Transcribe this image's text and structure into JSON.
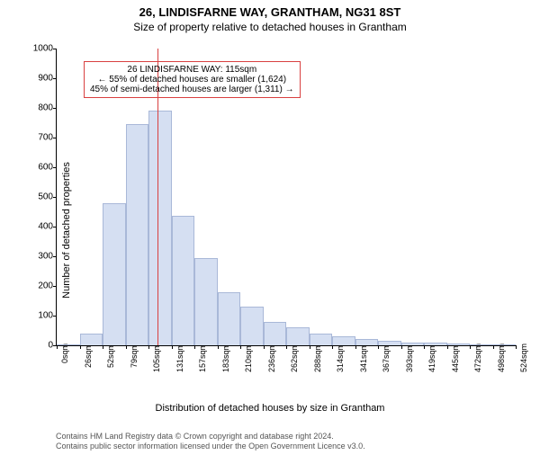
{
  "title_main": "26, LINDISFARNE WAY, GRANTHAM, NG31 8ST",
  "title_sub": "Size of property relative to detached houses in Grantham",
  "y_axis_label": "Number of detached properties",
  "x_axis_label": "Distribution of detached houses by size in Grantham",
  "footer_line1": "Contains HM Land Registry data © Crown copyright and database right 2024.",
  "footer_line2": "Contains public sector information licensed under the Open Government Licence v3.0.",
  "chart": {
    "type": "histogram",
    "ylim": [
      0,
      1000
    ],
    "ytick_step": 100,
    "x_categories": [
      "0sqm",
      "26sqm",
      "52sqm",
      "79sqm",
      "105sqm",
      "131sqm",
      "157sqm",
      "183sqm",
      "210sqm",
      "236sqm",
      "262sqm",
      "288sqm",
      "314sqm",
      "341sqm",
      "367sqm",
      "393sqm",
      "419sqm",
      "445sqm",
      "472sqm",
      "498sqm",
      "524sqm"
    ],
    "values": [
      0,
      40,
      480,
      745,
      790,
      435,
      295,
      180,
      130,
      80,
      60,
      40,
      30,
      20,
      15,
      10,
      8,
      5,
      3,
      2
    ],
    "bar_fill": "#d5dff2",
    "bar_stroke": "#a9b8d8",
    "background_color": "#ffffff",
    "axis_color": "#000000",
    "tick_fontsize": 10,
    "label_fontsize": 11,
    "title_fontsize": 13
  },
  "indicator": {
    "position_category_index": 4.4,
    "line_color": "#d94040"
  },
  "annotation": {
    "border_color": "#d94040",
    "line1": "26 LINDISFARNE WAY: 115sqm",
    "line2": "← 55% of detached houses are smaller (1,624)",
    "line3": "45% of semi-detached houses are larger (1,311) →"
  }
}
